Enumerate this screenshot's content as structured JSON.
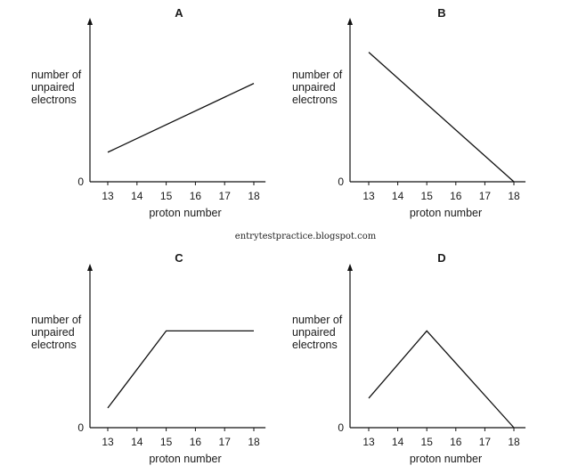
{
  "watermark": "entrytestpractice.blogspot.com",
  "chart_data": [
    {
      "type": "line",
      "title": "A",
      "xlabel": "proton number",
      "ylabel": [
        "number of",
        "unpaired",
        "electrons"
      ],
      "y_tick_labels": [
        "0"
      ],
      "x_ticks": [
        13,
        14,
        15,
        16,
        17,
        18
      ],
      "x": [
        13,
        18
      ],
      "y": [
        1.8,
        6.0
      ],
      "ylim": [
        0,
        10
      ],
      "xlim": [
        12.6,
        18.4
      ],
      "grid": false,
      "legend": "none"
    },
    {
      "type": "line",
      "title": "B",
      "xlabel": "proton number",
      "ylabel": [
        "number of",
        "unpaired",
        "electrons"
      ],
      "y_tick_labels": [
        "0"
      ],
      "x_ticks": [
        13,
        14,
        15,
        16,
        17,
        18
      ],
      "x": [
        13,
        18
      ],
      "y": [
        7.9,
        0
      ],
      "ylim": [
        0,
        10
      ],
      "xlim": [
        12.6,
        18.4
      ],
      "grid": false,
      "legend": "none"
    },
    {
      "type": "line",
      "title": "C",
      "xlabel": "proton number",
      "ylabel": [
        "number of",
        "unpaired",
        "electrons"
      ],
      "y_tick_labels": [
        "0"
      ],
      "x_ticks": [
        13,
        14,
        15,
        16,
        17,
        18
      ],
      "x": [
        13,
        15,
        18
      ],
      "y": [
        1.2,
        5.9,
        5.9
      ],
      "ylim": [
        0,
        10
      ],
      "xlim": [
        12.6,
        18.4
      ],
      "grid": false,
      "legend": "none"
    },
    {
      "type": "line",
      "title": "D",
      "xlabel": "proton number",
      "ylabel": [
        "number of",
        "unpaired",
        "electrons"
      ],
      "y_tick_labels": [
        "0"
      ],
      "x_ticks": [
        13,
        14,
        15,
        16,
        17,
        18
      ],
      "x": [
        13,
        15,
        18
      ],
      "y": [
        1.8,
        5.9,
        0
      ],
      "ylim": [
        0,
        10
      ],
      "xlim": [
        12.6,
        18.4
      ],
      "grid": false,
      "legend": "none"
    }
  ]
}
